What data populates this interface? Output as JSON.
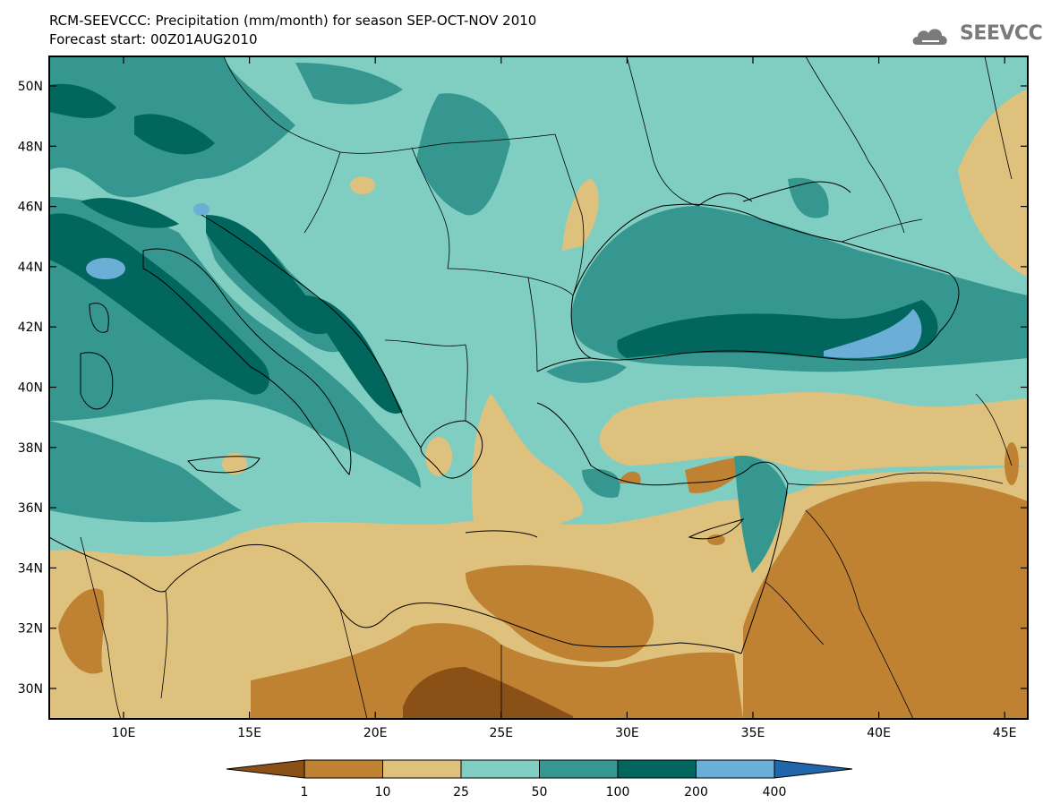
{
  "header": {
    "title": "RCM-SEEVCCC: Precipitation (mm/month) for season SEP-OCT-NOV 2010",
    "subtitle": "Forecast start: 00Z01AUG2010"
  },
  "logo": {
    "text": "SEEVCCC",
    "icon": "cloud-icon"
  },
  "axes": {
    "latitude_labels": [
      "50N",
      "48N",
      "46N",
      "44N",
      "42N",
      "40N",
      "38N",
      "36N",
      "34N",
      "32N",
      "30N"
    ],
    "longitude_labels": [
      "10E",
      "15E",
      "20E",
      "25E",
      "30E",
      "35E",
      "40E",
      "45E"
    ]
  },
  "legend": {
    "bins": [
      {
        "color": "#8a5015"
      },
      {
        "color": "#bf8233"
      },
      {
        "color": "#dfc17e"
      },
      {
        "color": "#80cdc1"
      },
      {
        "color": "#35978f"
      },
      {
        "color": "#01665e"
      },
      {
        "color": "#6baed6"
      },
      {
        "color": "#2166ac"
      }
    ],
    "labels": [
      "1",
      "10",
      "25",
      "50",
      "100",
      "200",
      "400"
    ]
  }
}
